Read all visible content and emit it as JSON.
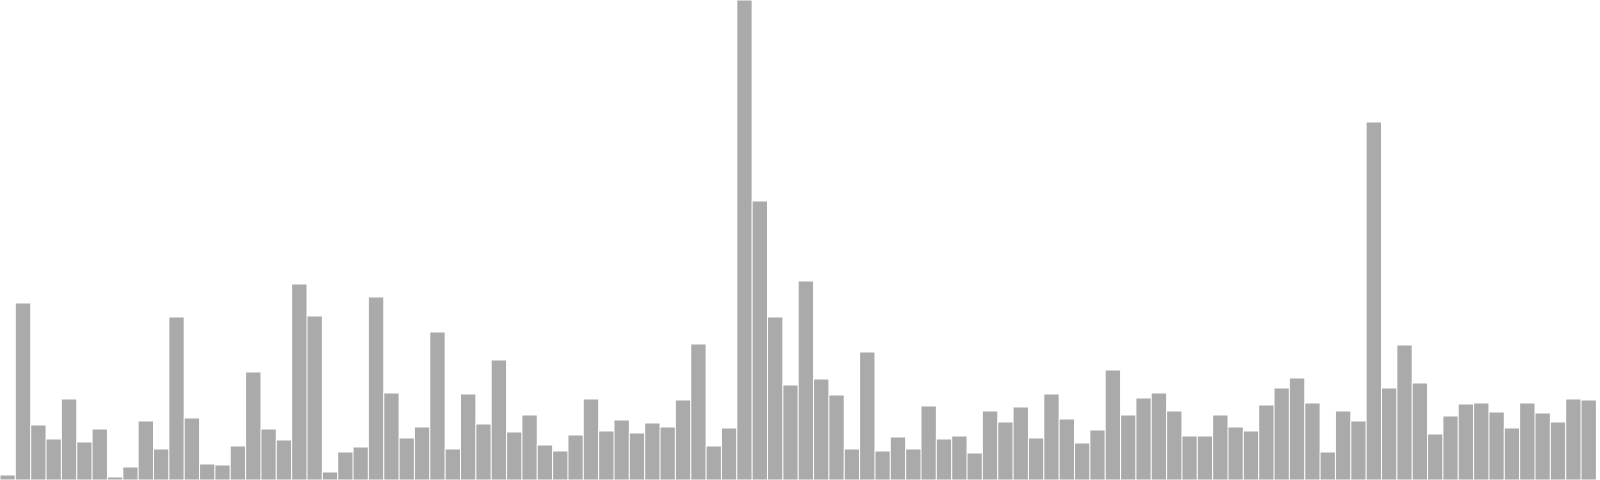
{
  "chart_data": {
    "type": "bar",
    "title": "",
    "xlabel": "",
    "ylabel": "",
    "grid": false,
    "ylim": [
      0,
      480
    ],
    "bar_color": "#aaaaaa",
    "background": "#ffffff",
    "values": [
      5,
      177,
      55,
      41,
      81,
      38,
      51,
      3,
      13,
      59,
      31,
      163,
      62,
      16,
      15,
      34,
      108,
      51,
      40,
      196,
      164,
      8,
      28,
      33,
      183,
      87,
      42,
      53,
      148,
      31,
      86,
      56,
      120,
      48,
      65,
      35,
      29,
      45,
      81,
      49,
      60,
      47,
      57,
      53,
      80,
      136,
      34,
      52,
      480,
      279,
      163,
      95,
      199,
      101,
      85,
      31,
      128,
      29,
      43,
      31,
      74,
      41,
      44,
      27,
      69,
      58,
      73,
      42,
      86,
      61,
      37,
      50,
      110,
      65,
      82,
      87,
      69,
      44,
      44,
      65,
      53,
      49,
      75,
      92,
      102,
      77,
      28,
      69,
      59,
      358,
      92,
      135,
      97,
      46,
      64,
      76,
      77,
      68,
      52,
      77,
      67,
      58,
      81,
      80
    ]
  }
}
